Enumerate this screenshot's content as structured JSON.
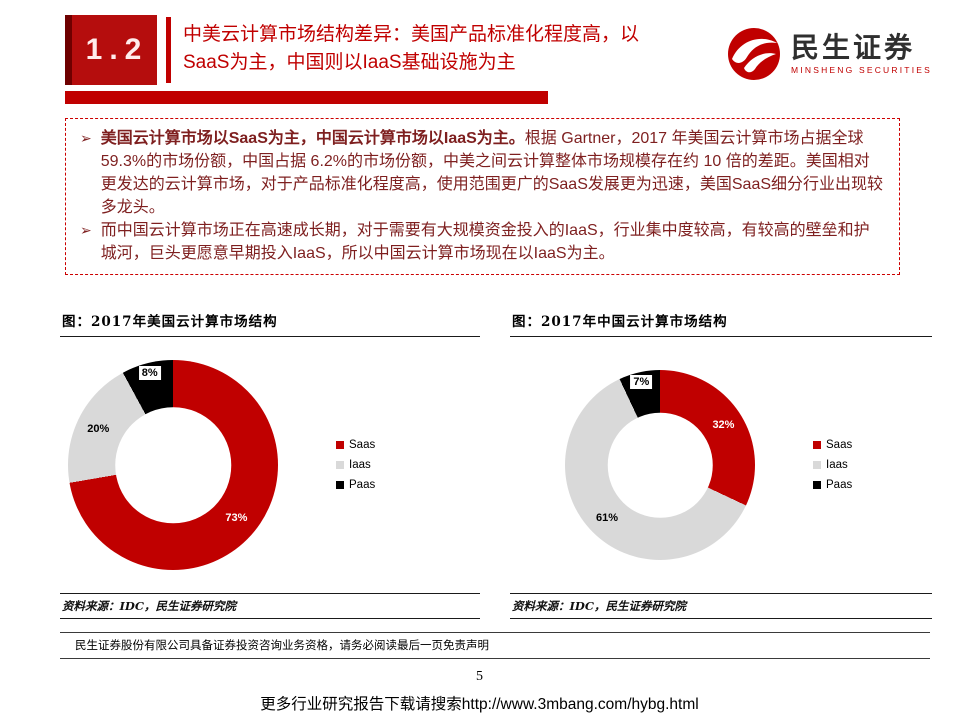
{
  "header": {
    "section_number": "1.2",
    "title_lines": [
      "中美云计算市场结构差异：美国产品标准化程度高，以",
      "SaaS为主，中国则以IaaS基础设施为主"
    ],
    "logo_name": "民生证券",
    "logo_subtitle": "MINSHENG SECURITIES"
  },
  "summary": {
    "bullet_glyph": "➢",
    "bullets": [
      {
        "lead": "美国云计算市场以SaaS为主，中国云计算市场以IaaS为主。",
        "text": "根据 Gartner，2017 年美国云计算市场占据全球 59.3%的市场份额，中国占据 6.2%的市场份额，中美之间云计算整体市场规模存在约 10 倍的差距。美国相对更发达的云计算市场，对于产品标准化程度高，使用范围更广的SaaS发展更为迅速，美国SaaS细分行业出现较多龙头。"
      },
      {
        "lead": "",
        "text": "而中国云计算市场正在高速成长期，对于需要有大规模资金投入的IaaS，行业集中度较高，有较高的壁垒和护城河，巨头更愿意早期投入IaaS，所以中国云计算市场现在以IaaS为主。"
      }
    ]
  },
  "chart_data": [
    {
      "type": "pie",
      "variant": "donut",
      "title": "图：2017年美国云计算市场结构",
      "labels": [
        "Saas",
        "Iaas",
        "Paas"
      ],
      "values": [
        73,
        20,
        8
      ],
      "value_labels": [
        "73%",
        "20%",
        "8%"
      ],
      "colors": [
        "#c00000",
        "#d9d9d9",
        "#000000"
      ],
      "label_styles": [
        "light",
        "dark",
        "chip"
      ],
      "legend_position": "right",
      "source": "资料来源：IDC，民生证券研究院"
    },
    {
      "type": "pie",
      "variant": "donut",
      "title": "图：2017年中国云计算市场结构",
      "labels": [
        "Saas",
        "Iaas",
        "Paas"
      ],
      "values": [
        32,
        61,
        7
      ],
      "value_labels": [
        "32%",
        "61%",
        "7%"
      ],
      "colors": [
        "#c00000",
        "#d9d9d9",
        "#000000"
      ],
      "label_styles": [
        "light",
        "dark",
        "chip"
      ],
      "legend_position": "right",
      "source": "资料来源：IDC，民生证券研究院"
    }
  ],
  "footer": {
    "disclaimer": "民生证券股份有限公司具备证券投资咨询业务资格，请务必阅读最后一页免责声明",
    "page_number": "5",
    "download_note": "更多行业研究报告下载请搜索http://www.3mbang.com/hybg.html"
  },
  "colors": {
    "accent_red": "#c00000",
    "slice_gray": "#d9d9d9",
    "slice_black": "#000000"
  }
}
